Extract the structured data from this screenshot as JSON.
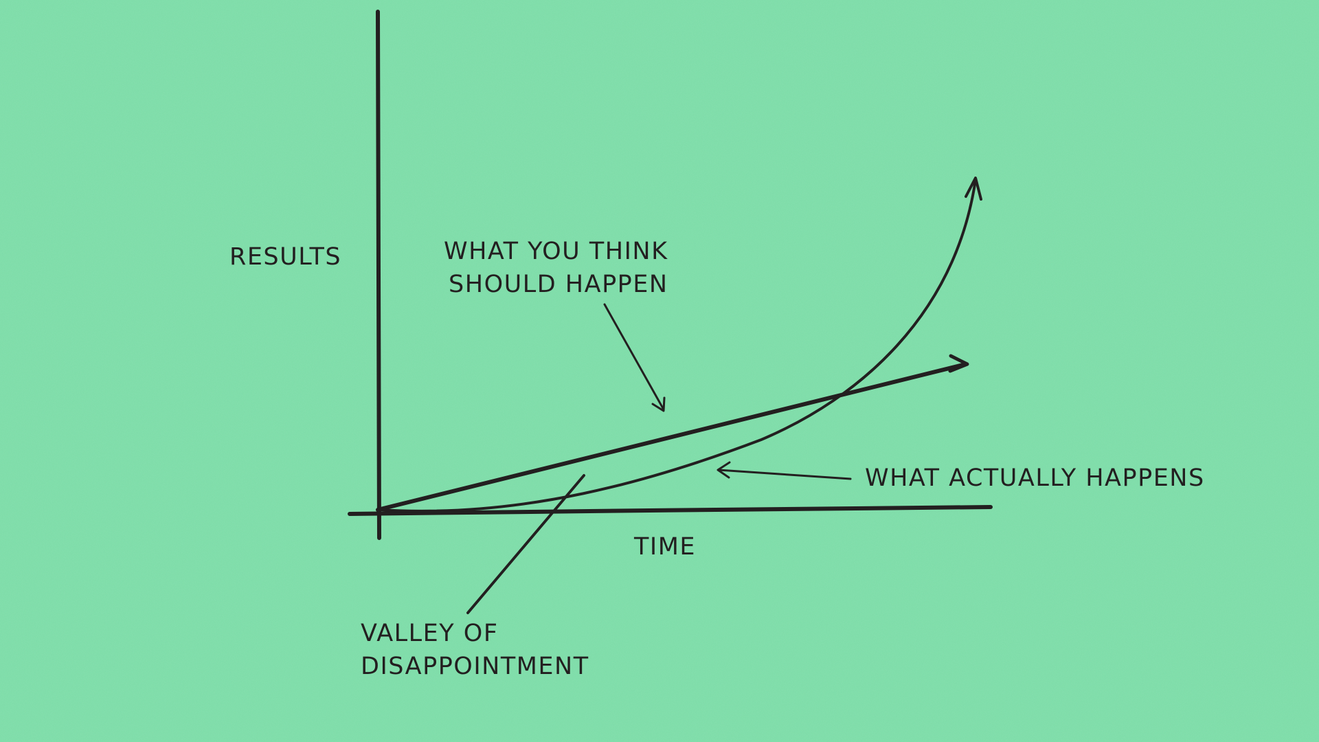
{
  "colors": {
    "background": "#7ddfaa",
    "ink": "#231f20"
  },
  "labels": {
    "y_axis": "RESULTS",
    "x_axis": "TIME",
    "expected": [
      "WHAT YOU THINK",
      "SHOULD HAPPEN"
    ],
    "actual": "WHAT ACTUALLY HAPPENS",
    "valley": [
      "VALLEY OF",
      "DISAPPOINTMENT"
    ]
  }
}
